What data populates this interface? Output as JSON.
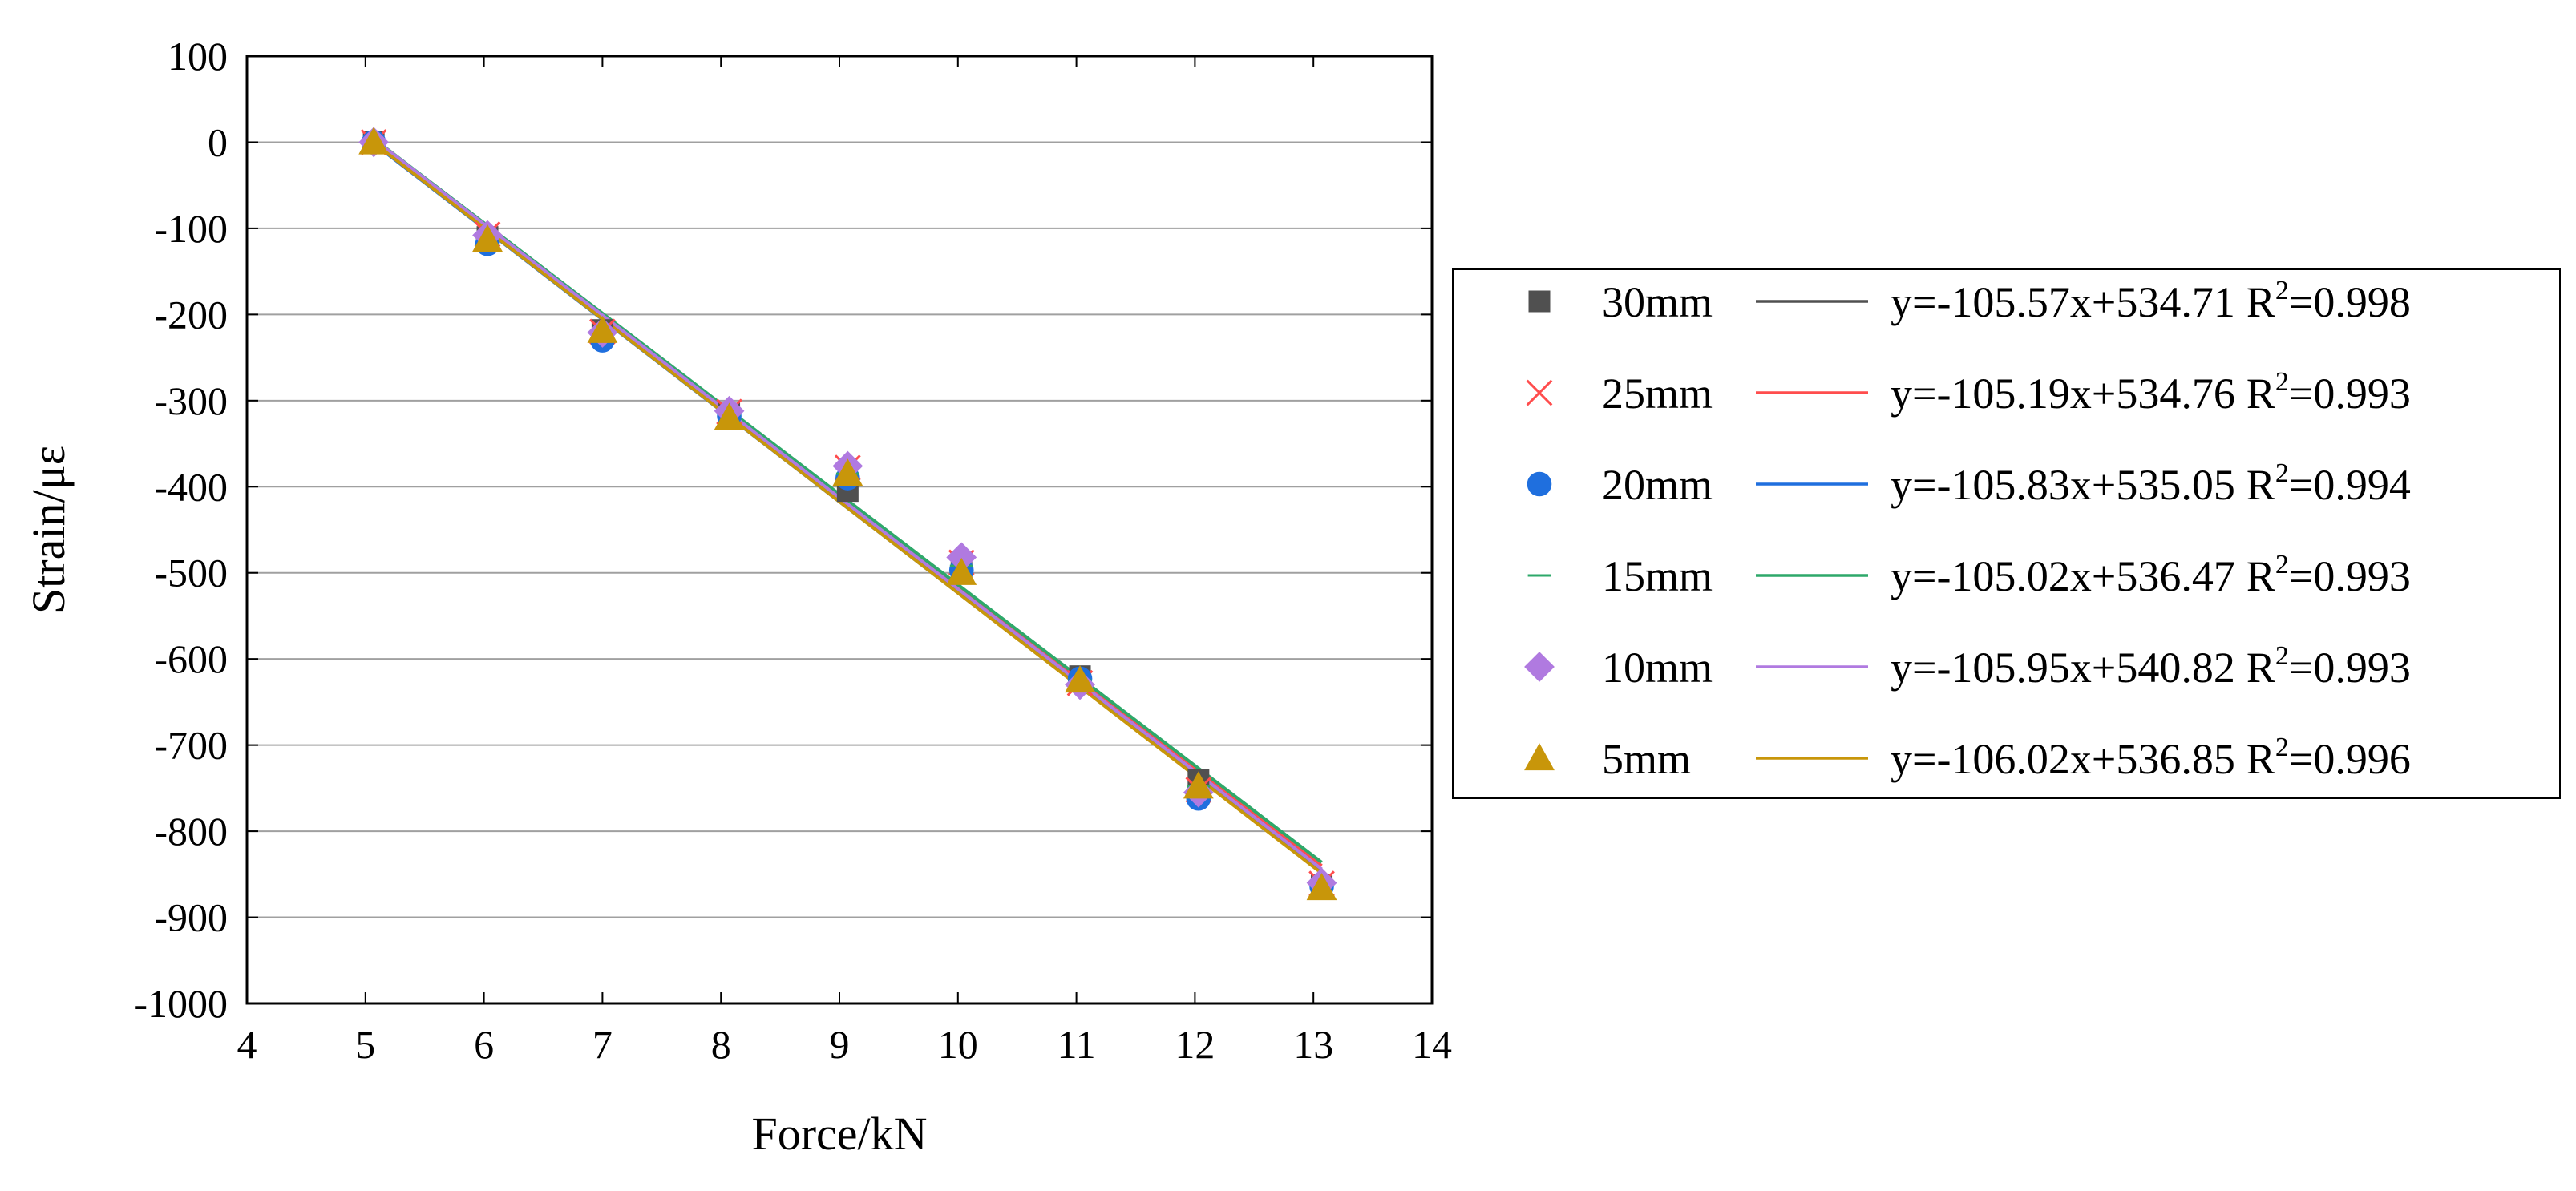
{
  "chart_data": {
    "type": "scatter",
    "title": "",
    "xlabel": "Force/kN",
    "ylabel": "Strain/με",
    "xlim": [
      4,
      14
    ],
    "ylim": [
      -1000,
      100
    ],
    "x_ticks": [
      "4",
      "5",
      "6",
      "7",
      "8",
      "9",
      "10",
      "11",
      "12",
      "13",
      "14"
    ],
    "y_ticks": [
      "100",
      "0",
      "-100",
      "-200",
      "-300",
      "-400",
      "-500",
      "-600",
      "-700",
      "-800",
      "-900",
      "-1000"
    ],
    "grid": "horizontal",
    "legend_position": "right",
    "series": [
      {
        "name": "30mm",
        "marker": "square",
        "color": "#505050",
        "fit_equation": "y=-105.57x+534.71",
        "r2_prefix": "R",
        "r2_sup": "2",
        "r2_value": "=0.998",
        "fit": {
          "slope": -105.57,
          "intercept": 534.71
        },
        "points": [
          [
            5.07,
            0
          ],
          [
            6.03,
            -110
          ],
          [
            7.0,
            -218
          ],
          [
            8.07,
            -315
          ],
          [
            9.07,
            -405
          ],
          [
            10.03,
            -500
          ],
          [
            11.03,
            -620
          ],
          [
            12.03,
            -740
          ],
          [
            13.07,
            -862
          ]
        ]
      },
      {
        "name": "25mm",
        "marker": "x",
        "color": "#ff4d4d",
        "fit_equation": "y=-105.19x+534.76",
        "r2_prefix": "R",
        "r2_sup": "2",
        "r2_value": "=0.993",
        "fit": {
          "slope": -105.19,
          "intercept": 534.76
        },
        "points": [
          [
            5.07,
            0
          ],
          [
            6.03,
            -107
          ],
          [
            7.0,
            -220
          ],
          [
            8.07,
            -313
          ],
          [
            9.07,
            -378
          ],
          [
            10.03,
            -488
          ],
          [
            11.03,
            -628
          ],
          [
            12.03,
            -752
          ],
          [
            13.07,
            -861
          ]
        ]
      },
      {
        "name": "20mm",
        "marker": "circle",
        "color": "#1f6fde",
        "fit_equation": "y=-105.83x+535.05",
        "r2_prefix": "R",
        "r2_sup": "2",
        "r2_value": "=0.994",
        "fit": {
          "slope": -105.83,
          "intercept": 535.05
        },
        "points": [
          [
            5.07,
            0
          ],
          [
            6.03,
            -118
          ],
          [
            7.0,
            -230
          ],
          [
            8.07,
            -318
          ],
          [
            9.07,
            -390
          ],
          [
            10.03,
            -497
          ],
          [
            11.03,
            -623
          ],
          [
            12.03,
            -762
          ],
          [
            13.07,
            -864
          ]
        ]
      },
      {
        "name": "15mm",
        "marker": "dash",
        "color": "#2ea86a",
        "fit_equation": "y=-105.02x+536.47",
        "r2_prefix": "R",
        "r2_sup": "2",
        "r2_value": "=0.993",
        "fit": {
          "slope": -105.02,
          "intercept": 536.47
        },
        "points": [
          [
            5.07,
            0
          ],
          [
            6.03,
            -112
          ],
          [
            7.0,
            -222
          ],
          [
            8.07,
            -316
          ],
          [
            9.07,
            -385
          ],
          [
            10.03,
            -492
          ],
          [
            11.03,
            -625
          ],
          [
            12.03,
            -748
          ],
          [
            13.07,
            -863
          ]
        ]
      },
      {
        "name": "10mm",
        "marker": "diamond",
        "color": "#b07ae0",
        "fit_equation": "y=-105.95x+540.82",
        "r2_prefix": "R",
        "r2_sup": "2",
        "r2_value": "=0.993",
        "fit": {
          "slope": -105.95,
          "intercept": 540.82
        },
        "points": [
          [
            5.07,
            0
          ],
          [
            6.03,
            -108
          ],
          [
            7.0,
            -221
          ],
          [
            8.07,
            -312
          ],
          [
            9.07,
            -376
          ],
          [
            10.03,
            -482
          ],
          [
            11.03,
            -630
          ],
          [
            12.03,
            -755
          ],
          [
            13.07,
            -860
          ]
        ]
      },
      {
        "name": "5mm",
        "marker": "triangle",
        "color": "#c8960a",
        "fit_equation": "y=-106.02x+536.85",
        "r2_prefix": "R",
        "r2_sup": "2",
        "r2_value": "=0.996",
        "fit": {
          "slope": -106.02,
          "intercept": 536.85
        },
        "points": [
          [
            5.07,
            0
          ],
          [
            6.03,
            -113
          ],
          [
            7.0,
            -219
          ],
          [
            8.07,
            -320
          ],
          [
            9.07,
            -385
          ],
          [
            10.03,
            -500
          ],
          [
            11.03,
            -625
          ],
          [
            12.03,
            -748
          ],
          [
            13.07,
            -866
          ]
        ]
      }
    ]
  }
}
